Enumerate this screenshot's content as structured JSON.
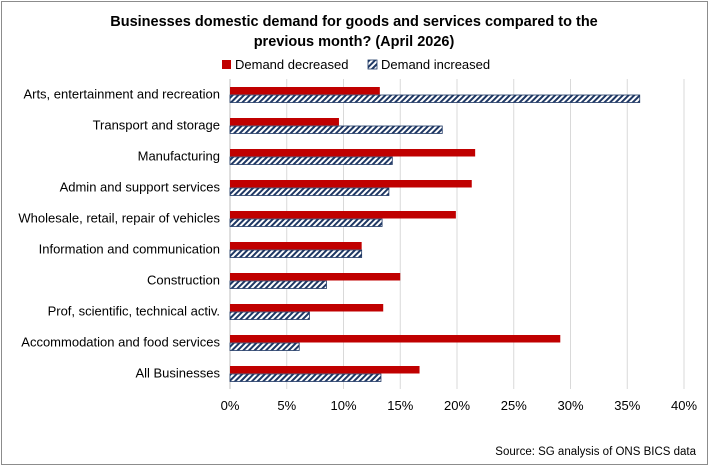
{
  "chart_data": {
    "type": "bar",
    "orientation": "horizontal",
    "title_line1": "Businesses domestic demand for goods and services compared to the",
    "title_line2": "previous month? (April 2026)",
    "categories": [
      "Arts, entertainment and recreation",
      "Transport and storage",
      "Manufacturing",
      "Admin and support services",
      "Wholesale, retail, repair of vehicles",
      "Information and communication",
      "Construction",
      "Prof, scientific, technical activ.",
      "Accommodation and food services",
      "All Businesses"
    ],
    "series": [
      {
        "name": "Demand decreased",
        "color": "#c00000",
        "pattern": "solid",
        "values": [
          13.2,
          9.6,
          21.6,
          21.3,
          19.9,
          11.6,
          15.0,
          13.5,
          29.1,
          16.7
        ]
      },
      {
        "name": "Demand increased",
        "color": "#1f3864",
        "pattern": "diagonal-hatch",
        "values": [
          36.1,
          18.7,
          14.3,
          14.0,
          13.4,
          11.6,
          8.5,
          7.0,
          6.1,
          13.3
        ]
      }
    ],
    "xlim": [
      0,
      40
    ],
    "xticks": [
      0,
      5,
      10,
      15,
      20,
      25,
      30,
      35,
      40
    ],
    "tick_suffix": "%",
    "legend_position": "top",
    "grid": "vertical",
    "source": "Source: SG analysis of ONS BICS data"
  }
}
